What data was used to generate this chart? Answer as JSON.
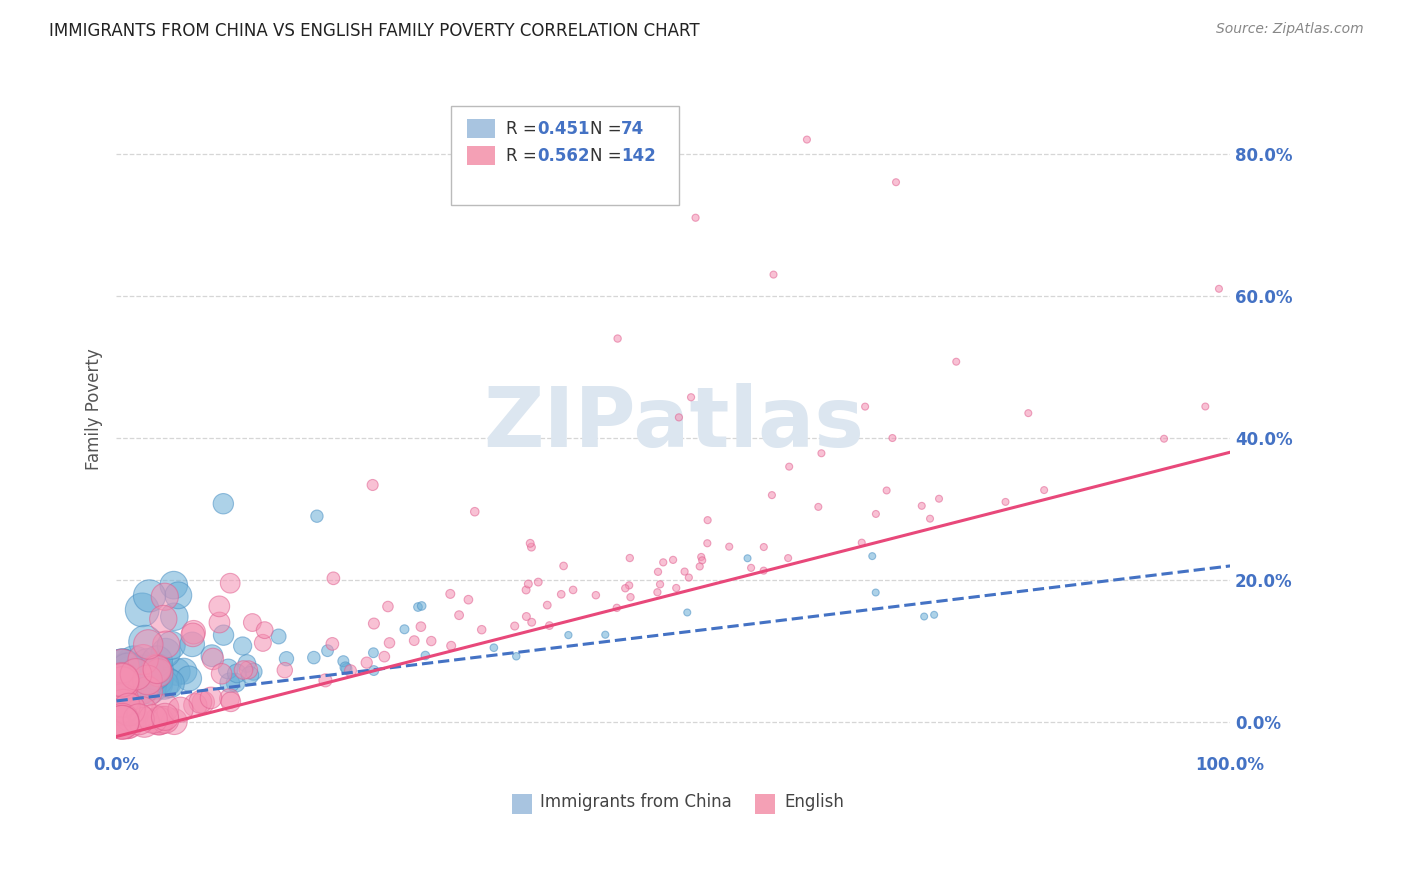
{
  "title": "IMMIGRANTS FROM CHINA VS ENGLISH FAMILY POVERTY CORRELATION CHART",
  "source": "Source: ZipAtlas.com",
  "ylabel": "Family Poverty",
  "ytick_values": [
    0.0,
    0.2,
    0.4,
    0.6,
    0.8
  ],
  "ytick_labels": [
    "0.0%",
    "20.0%",
    "40.0%",
    "60.0%",
    "80.0%"
  ],
  "xlim": [
    0.0,
    1.0
  ],
  "ylim": [
    -0.04,
    0.92
  ],
  "legend_entry1": {
    "color_box": "#a8c4e0",
    "R": "0.451",
    "N": "74",
    "label": "Immigrants from China"
  },
  "legend_entry2": {
    "color_box": "#f4a0b5",
    "R": "0.562",
    "N": "142",
    "label": "English"
  },
  "watermark": "ZIPatlas",
  "scatter_blue_color": "#6baed6",
  "scatter_blue_edge": "#4a90c4",
  "scatter_pink_color": "#f48fb1",
  "scatter_pink_edge": "#e06090",
  "trendline_blue_color": "#4472c4",
  "trendline_pink_color": "#e8487a",
  "background_color": "#ffffff",
  "grid_color": "#cccccc",
  "title_color": "#222222",
  "axis_label_color": "#555555",
  "tick_label_color": "#4472c4",
  "watermark_color": "#dce6f0",
  "source_color": "#888888"
}
